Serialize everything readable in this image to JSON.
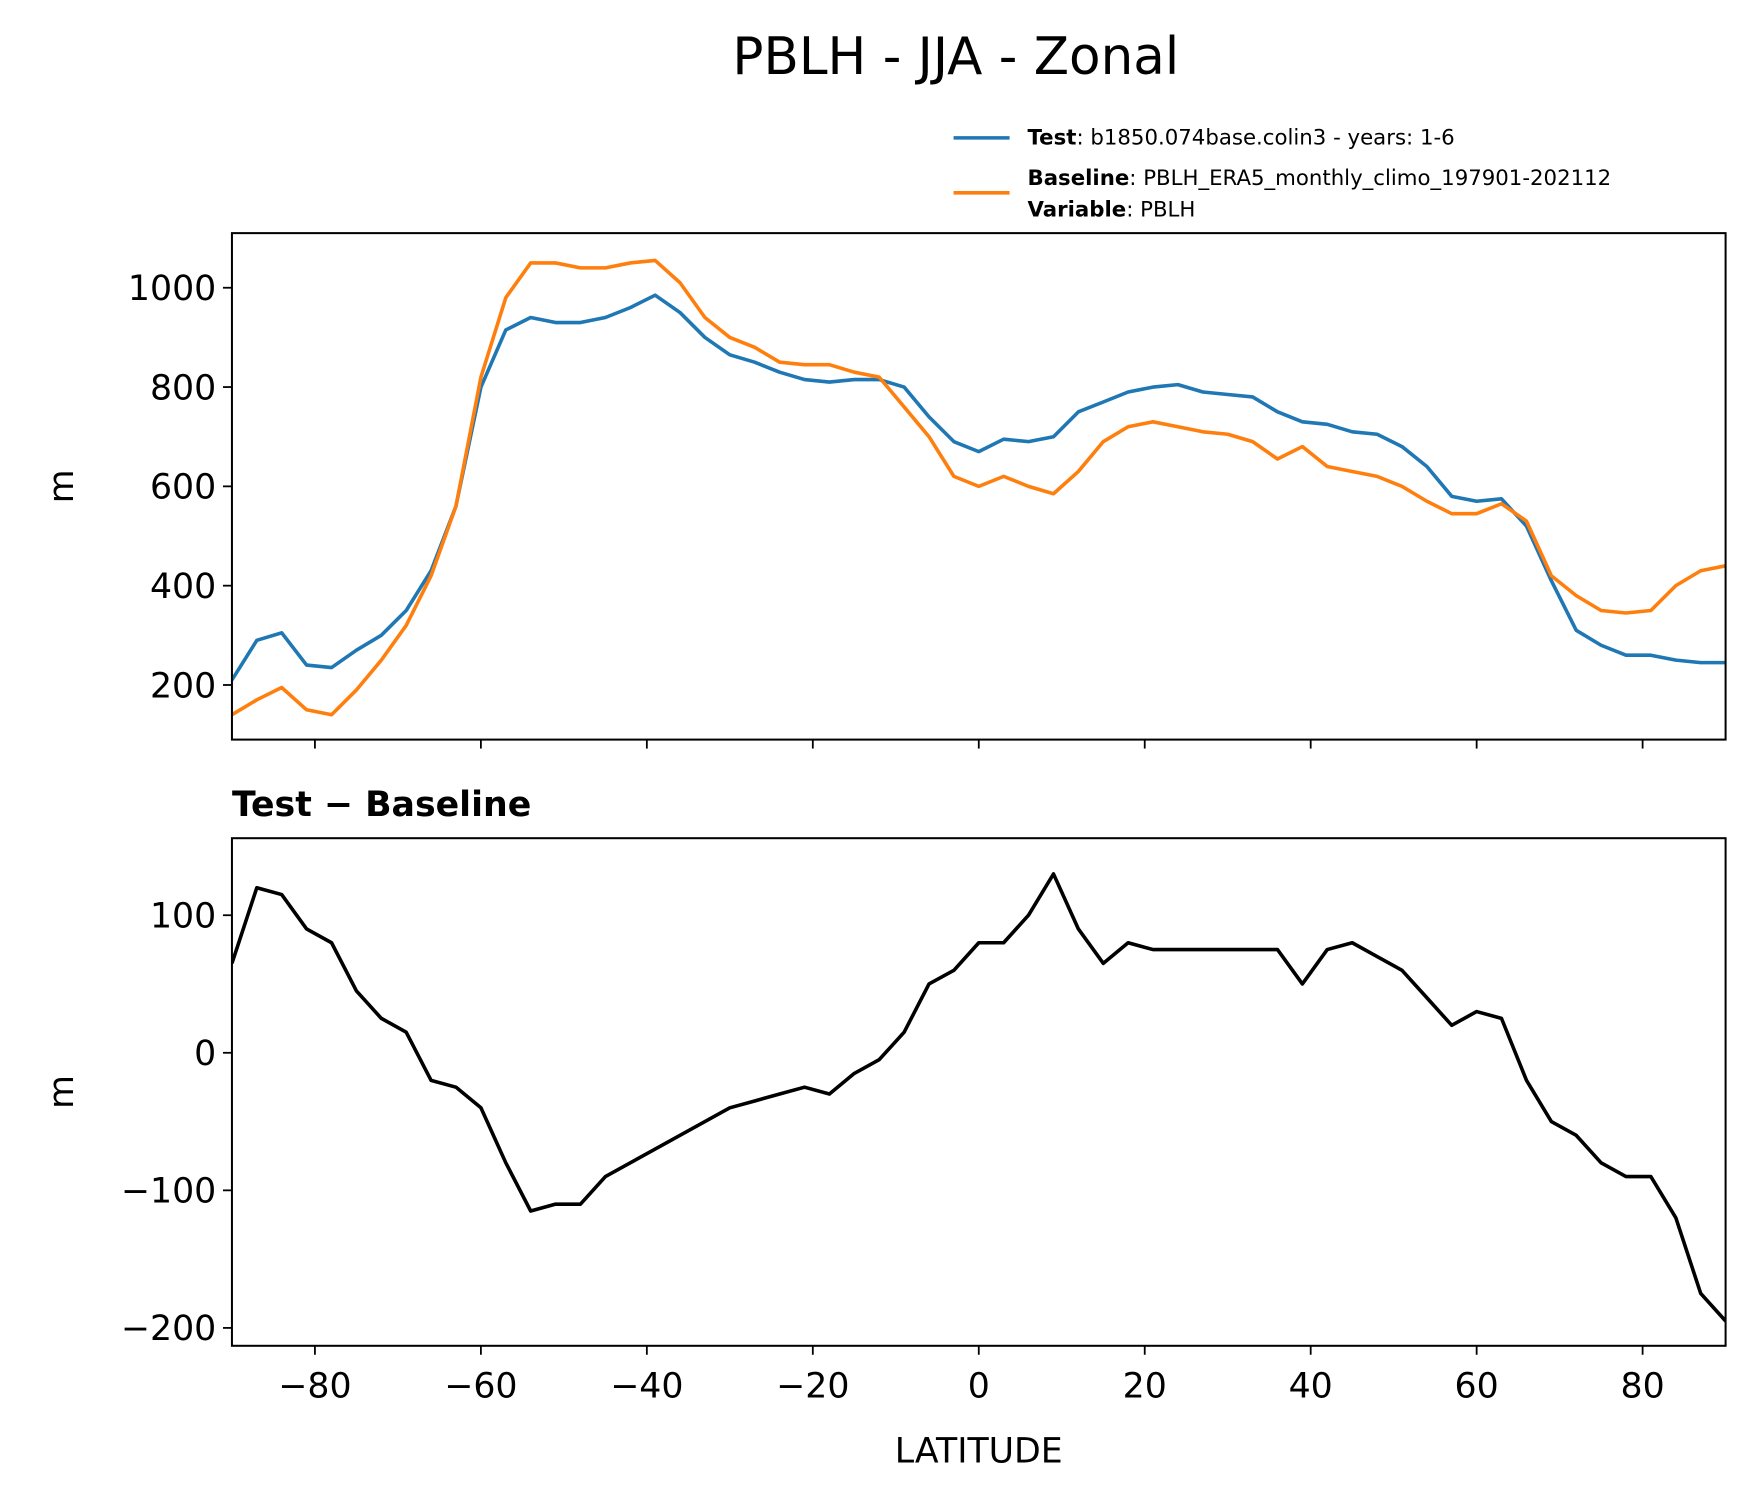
{
  "chart_data": [
    {
      "type": "line",
      "title": "PBLH - JJA - Zonal",
      "ylabel": "m",
      "x": [
        -90,
        -87,
        -84,
        -81,
        -78,
        -75,
        -72,
        -69,
        -66,
        -63,
        -60,
        -57,
        -54,
        -51,
        -48,
        -45,
        -42,
        -39,
        -36,
        -33,
        -30,
        -27,
        -24,
        -21,
        -18,
        -15,
        -12,
        -9,
        -6,
        -3,
        0,
        3,
        6,
        9,
        12,
        15,
        18,
        21,
        24,
        27,
        30,
        33,
        36,
        39,
        42,
        45,
        48,
        51,
        54,
        57,
        60,
        63,
        66,
        69,
        72,
        75,
        78,
        81,
        84,
        87,
        90
      ],
      "series": [
        {
          "name": "Test",
          "description": ": b1850.074base.colin3 - years: 1-6",
          "color": "#1f77b4",
          "values": [
            210,
            290,
            305,
            240,
            235,
            270,
            300,
            350,
            430,
            560,
            800,
            915,
            940,
            930,
            930,
            940,
            960,
            985,
            950,
            900,
            865,
            850,
            830,
            815,
            810,
            815,
            815,
            800,
            740,
            690,
            670,
            695,
            690,
            700,
            750,
            770,
            790,
            800,
            805,
            790,
            785,
            780,
            750,
            730,
            725,
            710,
            705,
            680,
            640,
            580,
            570,
            575,
            520,
            410,
            310,
            280,
            260,
            260,
            250,
            245,
            245
          ]
        },
        {
          "name": "Baseline",
          "description": ": PBLH_ERA5_monthly_climo_197901-202112",
          "color": "#ff7f0e",
          "values": [
            140,
            170,
            195,
            150,
            140,
            190,
            250,
            320,
            420,
            560,
            820,
            980,
            1050,
            1050,
            1040,
            1040,
            1050,
            1055,
            1010,
            940,
            900,
            880,
            850,
            845,
            845,
            830,
            820,
            760,
            700,
            620,
            600,
            620,
            600,
            585,
            630,
            690,
            720,
            730,
            720,
            710,
            705,
            690,
            655,
            680,
            640,
            630,
            620,
            600,
            570,
            545,
            545,
            565,
            530,
            420,
            380,
            350,
            345,
            350,
            400,
            430,
            440
          ]
        }
      ],
      "legend_note": {
        "name": "Variable",
        "description": ": PBLH"
      },
      "xlim": [
        -90,
        90
      ],
      "xticks": [
        -80,
        -60,
        -40,
        -20,
        0,
        20,
        40,
        60,
        80
      ],
      "ylim": [
        90,
        1110
      ],
      "yticks": [
        200,
        400,
        600,
        800,
        1000
      ]
    },
    {
      "type": "line",
      "title": "Test − Baseline",
      "ylabel": "m",
      "xlabel": "LATITUDE",
      "x": [
        -90,
        -87,
        -84,
        -81,
        -78,
        -75,
        -72,
        -69,
        -66,
        -63,
        -60,
        -57,
        -54,
        -51,
        -48,
        -45,
        -42,
        -39,
        -36,
        -33,
        -30,
        -27,
        -24,
        -21,
        -18,
        -15,
        -12,
        -9,
        -6,
        -3,
        0,
        3,
        6,
        9,
        12,
        15,
        18,
        21,
        24,
        27,
        30,
        33,
        36,
        39,
        42,
        45,
        48,
        51,
        54,
        57,
        60,
        63,
        66,
        69,
        72,
        75,
        78,
        81,
        84,
        87,
        90
      ],
      "series": [
        {
          "color": "#000000",
          "values": [
            65,
            120,
            115,
            90,
            80,
            45,
            25,
            15,
            -20,
            -25,
            -40,
            -80,
            -115,
            -110,
            -110,
            -90,
            -80,
            -70,
            -60,
            -50,
            -40,
            -35,
            -30,
            -25,
            -30,
            -15,
            -5,
            15,
            50,
            60,
            80,
            80,
            100,
            130,
            90,
            65,
            80,
            75,
            75,
            75,
            75,
            75,
            75,
            50,
            75,
            80,
            70,
            60,
            40,
            20,
            30,
            25,
            -20,
            -50,
            -60,
            -80,
            -90,
            -90,
            -120,
            -175,
            -195
          ]
        }
      ],
      "xlim": [
        -90,
        90
      ],
      "xticks": [
        {
          "value": -80,
          "label": "−80"
        },
        {
          "value": -60,
          "label": "−60"
        },
        {
          "value": -40,
          "label": "−40"
        },
        {
          "value": -20,
          "label": "−20"
        },
        0,
        20,
        40,
        60,
        80
      ],
      "ylim": [
        -213,
        156
      ],
      "yticks": [
        {
          "value": -200,
          "label": "−200"
        },
        {
          "value": -100,
          "label": "−100"
        },
        0,
        100
      ]
    }
  ]
}
